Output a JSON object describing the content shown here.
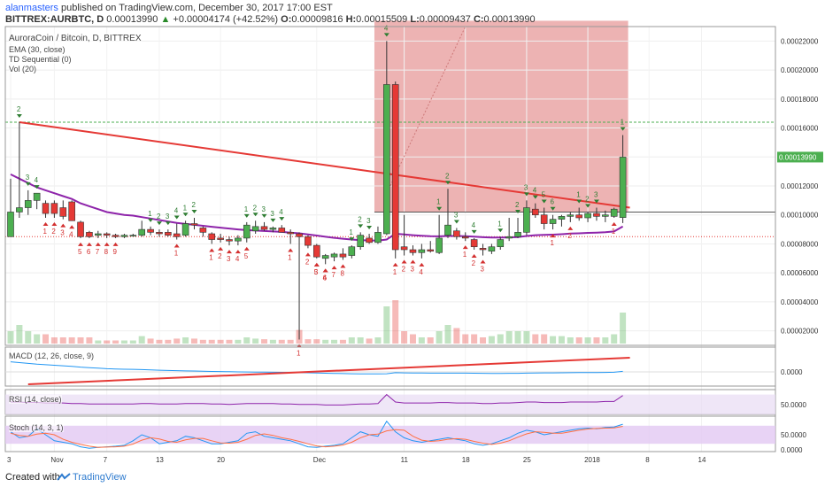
{
  "header": {
    "author": "alanmasters",
    "published_text": "published on TradingView.com, December 30, 2017 17:00 EST",
    "symbol": "BITTREX:AURBTC, D",
    "last": "0.00013990",
    "change": "+0.00004174 (+42.52%)",
    "o_label": "O:",
    "o": "0.00009816",
    "h_label": "H:",
    "h": "0.00015509",
    "l_label": "L:",
    "l": "0.00009437",
    "c_label": "C:",
    "c": "0.00013990"
  },
  "overlay": {
    "title": "AuroraCoin / Bitcoin, D, BITTREX",
    "ema": "EMA (30, close)",
    "td": "TD Sequential (0)",
    "vol": "Vol (20)",
    "macd": "MACD (12, 26, close, 9)",
    "rsi": "RSI (14, close)",
    "stoch": "Stoch (14, 3, 1)"
  },
  "footer": {
    "created_with": "Created with",
    "brand": "TradingView"
  },
  "colors": {
    "up": "#4caf50",
    "down": "#e53935",
    "ema": "#8e24aa",
    "trend": "#e53935",
    "zone": "#e8a0a0",
    "green_level": "#4caf50"
  },
  "chart_data": {
    "type": "candlestick",
    "price_axis": {
      "ticks": [
        "0.00002000",
        "0.00004000",
        "0.00006000",
        "0.00008000",
        "0.00010000",
        "0.00012000",
        "0.00014000",
        "0.00016000",
        "0.00018000",
        "0.00020000",
        "0.00022000"
      ],
      "last_label": "0.00013990"
    },
    "x_ticks": [
      {
        "label": "3",
        "i": 0
      },
      {
        "label": "Nov",
        "i": 5
      },
      {
        "label": "7",
        "i": 11
      },
      {
        "label": "13",
        "i": 17
      },
      {
        "label": "20",
        "i": 24
      },
      {
        "label": "Dec",
        "i": 35
      },
      {
        "label": "11",
        "i": 45
      },
      {
        "label": "18",
        "i": 52
      },
      {
        "label": "25",
        "i": 59
      },
      {
        "label": "2018",
        "i": 66
      },
      {
        "label": "8",
        "i": 73
      },
      {
        "label": "14",
        "i": 79
      }
    ],
    "candles": [
      {
        "o": 8.5e-05,
        "h": 0.000125,
        "l": 8.5e-05,
        "c": 0.000102,
        "v": 2
      },
      {
        "o": 0.000102,
        "h": 0.000164,
        "l": 9.8e-05,
        "c": 0.000105,
        "v": 3
      },
      {
        "o": 0.000105,
        "h": 0.000117,
        "l": 0.0001,
        "c": 0.00011,
        "v": 2
      },
      {
        "o": 0.00011,
        "h": 0.000115,
        "l": 0.000104,
        "c": 0.000115,
        "v": 1.5
      },
      {
        "o": 0.000108,
        "h": 0.00011,
        "l": 9.8e-05,
        "c": 0.000101,
        "v": 1.5
      },
      {
        "o": 0.000108,
        "h": 0.00011,
        "l": 9.8e-05,
        "c": 0.000101,
        "v": 1
      },
      {
        "o": 0.000105,
        "h": 0.00011,
        "l": 9.7e-05,
        "c": 9.9e-05,
        "v": 1
      },
      {
        "o": 0.000109,
        "h": 0.00011,
        "l": 9.6e-05,
        "c": 9.6e-05,
        "v": 1
      },
      {
        "o": 9.5e-05,
        "h": 9.6e-05,
        "l": 8.4e-05,
        "c": 8.5e-05,
        "v": 1
      },
      {
        "o": 8.8e-05,
        "h": 8.9e-05,
        "l": 8.4e-05,
        "c": 8.5e-05,
        "v": 1
      },
      {
        "o": 8.6e-05,
        "h": 8.9e-05,
        "l": 8.4e-05,
        "c": 8.7e-05,
        "v": 0.5
      },
      {
        "o": 8.7e-05,
        "h": 8.8e-05,
        "l": 8.4e-05,
        "c": 8.6e-05,
        "v": 0.5
      },
      {
        "o": 8.6e-05,
        "h": 8.7e-05,
        "l": 8.4e-05,
        "c": 8.5e-05,
        "v": 0.5
      },
      {
        "o": 8.5e-05,
        "h": 8.7e-05,
        "l": 8.4e-05,
        "c": 8.6e-05,
        "v": 0.5
      },
      {
        "o": 8.6e-05,
        "h": 8.7e-05,
        "l": 8.5e-05,
        "c": 8.6e-05,
        "v": 0.5
      },
      {
        "o": 8.6e-05,
        "h": 9.6e-05,
        "l": 8.5e-05,
        "c": 9e-05,
        "v": 1.2
      },
      {
        "o": 9e-05,
        "h": 9.2e-05,
        "l": 8.6e-05,
        "c": 8.8e-05,
        "v": 0.8
      },
      {
        "o": 8.8e-05,
        "h": 9e-05,
        "l": 8.5e-05,
        "c": 8.7e-05,
        "v": 0.6
      },
      {
        "o": 8.8e-05,
        "h": 9e-05,
        "l": 8.5e-05,
        "c": 8.6e-05,
        "v": 0.6
      },
      {
        "o": 8.7e-05,
        "h": 9.4e-05,
        "l": 8.3e-05,
        "c": 8.5e-05,
        "v": 0.8
      },
      {
        "o": 8.6e-05,
        "h": 9.6e-05,
        "l": 8.5e-05,
        "c": 9.4e-05,
        "v": 1
      },
      {
        "o": 9.4e-05,
        "h": 9.8e-05,
        "l": 9e-05,
        "c": 9.3e-05,
        "v": 0.8
      },
      {
        "o": 9.1e-05,
        "h": 9.2e-05,
        "l": 8.5e-05,
        "c": 8.8e-05,
        "v": 0.6
      },
      {
        "o": 8.7e-05,
        "h": 8.8e-05,
        "l": 8e-05,
        "c": 8.3e-05,
        "v": 0.6
      },
      {
        "o": 8.4e-05,
        "h": 8.7e-05,
        "l": 8.1e-05,
        "c": 8.3e-05,
        "v": 0.6
      },
      {
        "o": 8.3e-05,
        "h": 8.5e-05,
        "l": 7.9e-05,
        "c": 8.2e-05,
        "v": 0.6
      },
      {
        "o": 8.2e-05,
        "h": 8.6e-05,
        "l": 7.9e-05,
        "c": 8.4e-05,
        "v": 0.6
      },
      {
        "o": 8.4e-05,
        "h": 9.5e-05,
        "l": 8.1e-05,
        "c": 9.3e-05,
        "v": 1
      },
      {
        "o": 8.9e-05,
        "h": 9.6e-05,
        "l": 8.7e-05,
        "c": 9.2e-05,
        "v": 0.8
      },
      {
        "o": 9.2e-05,
        "h": 9.5e-05,
        "l": 8.9e-05,
        "c": 9e-05,
        "v": 0.7
      },
      {
        "o": 9e-05,
        "h": 9.2e-05,
        "l": 8.8e-05,
        "c": 9.1e-05,
        "v": 0.6
      },
      {
        "o": 9.1e-05,
        "h": 9.3e-05,
        "l": 8.8e-05,
        "c": 8.8e-05,
        "v": 0.6
      },
      {
        "o": 8.8e-05,
        "h": 9e-05,
        "l": 8e-05,
        "c": 8.7e-05,
        "v": 0.6
      },
      {
        "o": 8.7e-05,
        "h": 8.8e-05,
        "l": 1.4e-05,
        "c": 8.5e-05,
        "v": 2.2
      },
      {
        "o": 8.5e-05,
        "h": 8.6e-05,
        "l": 7.7e-05,
        "c": 7.9e-05,
        "v": 0.7
      },
      {
        "o": 7.9e-05,
        "h": 8e-05,
        "l": 7e-05,
        "c": 7.1e-05,
        "v": 0.7
      },
      {
        "o": 7e-05,
        "h": 7.3e-05,
        "l": 6.6e-05,
        "c": 7.2e-05,
        "v": 0.6
      },
      {
        "o": 7.1e-05,
        "h": 7.4e-05,
        "l": 6.8e-05,
        "c": 7.3e-05,
        "v": 0.6
      },
      {
        "o": 7.3e-05,
        "h": 7.7e-05,
        "l": 6.9e-05,
        "c": 7.1e-05,
        "v": 0.6
      },
      {
        "o": 7.2e-05,
        "h": 7.9e-05,
        "l": 7e-05,
        "c": 7.8e-05,
        "v": 1
      },
      {
        "o": 7.8e-05,
        "h": 8.8e-05,
        "l": 7.6e-05,
        "c": 8.6e-05,
        "v": 1
      },
      {
        "o": 8.4e-05,
        "h": 8.7e-05,
        "l": 8e-05,
        "c": 8.1e-05,
        "v": 0.8
      },
      {
        "o": 8.1e-05,
        "h": 9.2e-05,
        "l": 8e-05,
        "c": 8.8e-05,
        "v": 1
      },
      {
        "o": 8.7e-05,
        "h": 0.00022,
        "l": 8.6e-05,
        "c": 0.00019,
        "v": 6
      },
      {
        "o": 0.00019,
        "h": 0.000192,
        "l": 7e-05,
        "c": 7.6e-05,
        "v": 7
      },
      {
        "o": 7.8e-05,
        "h": 0.0001,
        "l": 7.2e-05,
        "c": 7.6e-05,
        "v": 2
      },
      {
        "o": 7.6e-05,
        "h": 7.9e-05,
        "l": 7.2e-05,
        "c": 7.4e-05,
        "v": 1.5
      },
      {
        "o": 7.4e-05,
        "h": 8e-05,
        "l": 7e-05,
        "c": 7.6e-05,
        "v": 1
      },
      {
        "o": 7.6e-05,
        "h": 8.2e-05,
        "l": 7.4e-05,
        "c": 7.5e-05,
        "v": 1
      },
      {
        "o": 7.4e-05,
        "h": 0.0001,
        "l": 7.3e-05,
        "c": 8.4e-05,
        "v": 2
      },
      {
        "o": 8.6e-05,
        "h": 0.000118,
        "l": 8.4e-05,
        "c": 9.3e-05,
        "v": 3
      },
      {
        "o": 8.9e-05,
        "h": 9.1e-05,
        "l": 8.3e-05,
        "c": 8.5e-05,
        "v": 2.5
      },
      {
        "o": 8.5e-05,
        "h": 8.8e-05,
        "l": 8.2e-05,
        "c": 8.4e-05,
        "v": 1.5
      },
      {
        "o": 8.3e-05,
        "h": 8.4e-05,
        "l": 7.6e-05,
        "c": 7.8e-05,
        "v": 1.5
      },
      {
        "o": 7.7e-05,
        "h": 8e-05,
        "l": 7.2e-05,
        "c": 7.6e-05,
        "v": 1
      },
      {
        "o": 7.5e-05,
        "h": 8e-05,
        "l": 7.3e-05,
        "c": 7.8e-05,
        "v": 1.2
      },
      {
        "o": 7.8e-05,
        "h": 8.5e-05,
        "l": 7.6e-05,
        "c": 8.3e-05,
        "v": 1.5
      },
      {
        "o": 8.4e-05,
        "h": 9.8e-05,
        "l": 8.2e-05,
        "c": 8.5e-05,
        "v": 2
      },
      {
        "o": 8.5e-05,
        "h": 9.8e-05,
        "l": 8.4e-05,
        "c": 8.8e-05,
        "v": 2
      },
      {
        "o": 8.8e-05,
        "h": 0.00011,
        "l": 8.6e-05,
        "c": 0.000105,
        "v": 2
      },
      {
        "o": 0.000104,
        "h": 0.000108,
        "l": 9.8e-05,
        "c": 0.0001,
        "v": 1.5
      },
      {
        "o": 0.0001,
        "h": 0.000105,
        "l": 9e-05,
        "c": 9.4e-05,
        "v": 1.5
      },
      {
        "o": 9.4e-05,
        "h": 0.0001,
        "l": 9e-05,
        "c": 9.7e-05,
        "v": 1.2
      },
      {
        "o": 9.7e-05,
        "h": 0.0001,
        "l": 9.2e-05,
        "c": 9.9e-05,
        "v": 1.2
      },
      {
        "o": 9.9e-05,
        "h": 0.000102,
        "l": 9.5e-05,
        "c": 0.0001,
        "v": 1
      },
      {
        "o": 0.0001,
        "h": 0.000105,
        "l": 9.6e-05,
        "c": 9.8e-05,
        "v": 1
      },
      {
        "o": 9.8e-05,
        "h": 0.000102,
        "l": 9.5e-05,
        "c": 0.000101,
        "v": 1
      },
      {
        "o": 0.000101,
        "h": 0.000105,
        "l": 9.6e-05,
        "c": 9.9e-05,
        "v": 1
      },
      {
        "o": 9.9e-05,
        "h": 0.000103,
        "l": 9.5e-05,
        "c": 0.0001,
        "v": 1
      },
      {
        "o": 9.9e-05,
        "h": 0.000105,
        "l": 9.8e-05,
        "c": 0.000104,
        "v": 1.5
      },
      {
        "o": 9.82e-05,
        "h": 0.0001551,
        "l": 9.44e-05,
        "c": 0.0001399,
        "v": 5
      }
    ],
    "ema": [
      0.000128,
      0.000125,
      0.000122,
      0.000119,
      0.000117,
      0.000115,
      0.000113,
      0.000111,
      0.000108,
      0.000106,
      0.000104,
      0.000102,
      0.000101,
      0.0001,
      9.95e-05,
      9.85e-05,
      9.75e-05,
      9.65e-05,
      9.55e-05,
      9.45e-05,
      9.38e-05,
      9.32e-05,
      9.25e-05,
      9.18e-05,
      9.12e-05,
      9.06e-05,
      9e-05,
      8.95e-05,
      8.92e-05,
      8.89e-05,
      8.86e-05,
      8.83e-05,
      8.78e-05,
      8.73e-05,
      8.66e-05,
      8.58e-05,
      8.49e-05,
      8.42e-05,
      8.36e-05,
      8.3e-05,
      8.26e-05,
      8.24e-05,
      8.23e-05,
      8.3e-05,
      8.7e-05,
      8.65e-05,
      8.6e-05,
      8.56e-05,
      8.53e-05,
      8.52e-05,
      8.55e-05,
      8.55e-05,
      8.53e-05,
      8.5e-05,
      8.46e-05,
      8.44e-05,
      8.44e-05,
      8.45e-05,
      8.47e-05,
      8.55e-05,
      8.6e-05,
      8.62e-05,
      8.64e-05,
      8.67e-05,
      8.71e-05,
      8.73e-05,
      8.76e-05,
      8.78e-05,
      8.81e-05,
      8.86e-05,
      9.2e-05
    ],
    "trendline": {
      "from": {
        "i": 1,
        "p": 0.000164
      },
      "to": {
        "i": 70,
        "p": 0.000105
      }
    },
    "green_level": 0.000164,
    "zone": {
      "from_i": 42,
      "to_i": 70,
      "top": 0.000234,
      "bottom": 0.000102
    },
    "td_up": [
      {
        "i": 1,
        "n": "2"
      },
      {
        "i": 2,
        "n": "3"
      },
      {
        "i": 3,
        "n": "4"
      },
      {
        "i": 16,
        "n": "1"
      },
      {
        "i": 17,
        "n": "2"
      },
      {
        "i": 18,
        "n": "3"
      },
      {
        "i": 19,
        "n": "4"
      },
      {
        "i": 20,
        "n": "1"
      },
      {
        "i": 21,
        "n": "2"
      },
      {
        "i": 27,
        "n": "1"
      },
      {
        "i": 28,
        "n": "2"
      },
      {
        "i": 29,
        "n": "3"
      },
      {
        "i": 30,
        "n": "3"
      },
      {
        "i": 31,
        "n": "4"
      },
      {
        "i": 39,
        "n": "1"
      },
      {
        "i": 40,
        "n": "2"
      },
      {
        "i": 41,
        "n": "3"
      },
      {
        "i": 43,
        "n": "4"
      },
      {
        "i": 49,
        "n": "1"
      },
      {
        "i": 50,
        "n": "2"
      },
      {
        "i": 51,
        "n": "3"
      },
      {
        "i": 53,
        "n": "4"
      },
      {
        "i": 56,
        "n": "1"
      },
      {
        "i": 58,
        "n": "2"
      },
      {
        "i": 59,
        "n": "3"
      },
      {
        "i": 60,
        "n": "4"
      },
      {
        "i": 61,
        "n": "5"
      },
      {
        "i": 62,
        "n": "6"
      },
      {
        "i": 65,
        "n": "1"
      },
      {
        "i": 66,
        "n": "2"
      },
      {
        "i": 67,
        "n": "3"
      },
      {
        "i": 70,
        "n": "1"
      }
    ],
    "td_down": [
      {
        "i": 4,
        "n": "1"
      },
      {
        "i": 5,
        "n": "2"
      },
      {
        "i": 6,
        "n": "3"
      },
      {
        "i": 7,
        "n": "4"
      },
      {
        "i": 8,
        "n": "5"
      },
      {
        "i": 9,
        "n": "6"
      },
      {
        "i": 10,
        "n": "7"
      },
      {
        "i": 11,
        "n": "8"
      },
      {
        "i": 12,
        "n": "9"
      },
      {
        "i": 19,
        "n": "1"
      },
      {
        "i": 23,
        "n": "1"
      },
      {
        "i": 24,
        "n": "2"
      },
      {
        "i": 25,
        "n": "3"
      },
      {
        "i": 26,
        "n": "4"
      },
      {
        "i": 27,
        "n": "5"
      },
      {
        "i": 32,
        "n": "1"
      },
      {
        "i": 33,
        "n": "1"
      },
      {
        "i": 34,
        "n": "2"
      },
      {
        "i": 35,
        "n": "3"
      },
      {
        "i": 36,
        "n": "4"
      },
      {
        "i": 35,
        "n": "5"
      },
      {
        "i": 36,
        "n": "6"
      },
      {
        "i": 37,
        "n": "7"
      },
      {
        "i": 38,
        "n": "8"
      },
      {
        "i": 44,
        "n": "1"
      },
      {
        "i": 45,
        "n": "2"
      },
      {
        "i": 46,
        "n": "3"
      },
      {
        "i": 47,
        "n": "4"
      },
      {
        "i": 52,
        "n": "1"
      },
      {
        "i": 53,
        "n": "2"
      },
      {
        "i": 54,
        "n": "3"
      },
      {
        "i": 62,
        "n": "1"
      },
      {
        "i": 64,
        "n": "2"
      },
      {
        "i": 69,
        "n": "1"
      }
    ],
    "macd_axis_label": "0.0000",
    "rsi_axis_label": "50.0000",
    "stoch_axis_labels": [
      "50.0000",
      "0.0000"
    ],
    "rsi": [
      55,
      55,
      54,
      54,
      53,
      53,
      53,
      52,
      52,
      51,
      51,
      51,
      51,
      51,
      51,
      52,
      52,
      51,
      51,
      51,
      52,
      52,
      52,
      51,
      51,
      50,
      51,
      52,
      52,
      52,
      52,
      51,
      51,
      50,
      50,
      50,
      49,
      49,
      49,
      50,
      51,
      51,
      52,
      70,
      55,
      53,
      53,
      53,
      53,
      54,
      54,
      53,
      53,
      53,
      52,
      52,
      53,
      53,
      54,
      55,
      55,
      54,
      54,
      54,
      55,
      55,
      55,
      55,
      56,
      56,
      68
    ],
    "stoch_k": [
      60,
      40,
      45,
      70,
      50,
      30,
      25,
      20,
      10,
      5,
      8,
      10,
      12,
      15,
      30,
      50,
      40,
      20,
      25,
      30,
      45,
      40,
      30,
      20,
      20,
      25,
      30,
      55,
      60,
      45,
      40,
      35,
      30,
      20,
      10,
      8,
      12,
      15,
      20,
      40,
      60,
      50,
      45,
      95,
      60,
      40,
      30,
      25,
      30,
      35,
      40,
      35,
      30,
      20,
      15,
      20,
      30,
      40,
      55,
      65,
      60,
      50,
      55,
      60,
      65,
      70,
      72,
      70,
      74,
      76,
      85
    ],
    "stoch_d": [
      55,
      48,
      45,
      52,
      55,
      50,
      35,
      25,
      18,
      12,
      8,
      9,
      10,
      12,
      19,
      32,
      40,
      36,
      28,
      25,
      33,
      38,
      38,
      30,
      23,
      22,
      25,
      35,
      48,
      53,
      48,
      40,
      35,
      28,
      20,
      13,
      10,
      12,
      16,
      25,
      40,
      50,
      52,
      63,
      67,
      65,
      45,
      32,
      28,
      30,
      35,
      37,
      35,
      28,
      22,
      18,
      22,
      30,
      42,
      53,
      60,
      58,
      55,
      55,
      60,
      65,
      69,
      71,
      72,
      73,
      78
    ]
  }
}
